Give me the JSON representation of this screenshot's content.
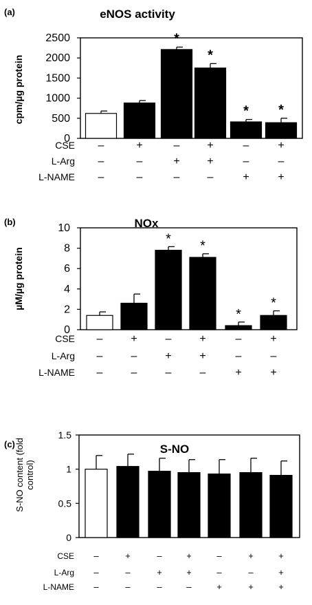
{
  "chart_data": [
    {
      "panel_label": "(a)",
      "type": "bar",
      "title": "eNOS activity",
      "ylabel": "cpm/µg protein",
      "ylim": [
        0,
        2500
      ],
      "yticks": [
        "0",
        "500",
        "1000",
        "1500",
        "2000",
        "2500"
      ],
      "values": [
        620,
        880,
        2210,
        1750,
        410,
        390
      ],
      "errors": [
        60,
        60,
        60,
        110,
        60,
        110
      ],
      "bar_fill": [
        "#ffffff",
        "#000000",
        "#000000",
        "#000000",
        "#000000",
        "#000000"
      ],
      "significance": [
        "",
        "",
        "*",
        "*",
        "*",
        "*"
      ],
      "conditions": [
        {
          "label": "CSE",
          "symbols": [
            "–",
            "+",
            "–",
            "+",
            "–",
            "+"
          ]
        },
        {
          "label": "L-Arg",
          "symbols": [
            "–",
            "–",
            "+",
            "+",
            "–",
            "–"
          ]
        },
        {
          "label": "L-NAME",
          "symbols": [
            "–",
            "–",
            "–",
            "–",
            "+",
            "+"
          ]
        }
      ]
    },
    {
      "panel_label": "(b)",
      "type": "bar",
      "title": "NOx",
      "ylabel": "µM/µg protein",
      "ylim": [
        0,
        10
      ],
      "yticks": [
        "0",
        "2",
        "4",
        "6",
        "8",
        "10"
      ],
      "values": [
        1.4,
        2.6,
        7.8,
        7.1,
        0.4,
        1.4
      ],
      "errors": [
        0.35,
        0.9,
        0.35,
        0.35,
        0.35,
        0.45
      ],
      "bar_fill": [
        "#ffffff",
        "#000000",
        "#000000",
        "#000000",
        "#000000",
        "#000000"
      ],
      "significance": [
        "",
        "",
        "*",
        "*",
        "*",
        "*"
      ],
      "conditions": [
        {
          "label": "CSE",
          "symbols": [
            "–",
            "+",
            "–",
            "+",
            "–",
            "+"
          ]
        },
        {
          "label": "L-Arg",
          "symbols": [
            "–",
            "–",
            "+",
            "+",
            "–",
            "–"
          ]
        },
        {
          "label": "L-NAME",
          "symbols": [
            "–",
            "–",
            "–",
            "–",
            "+",
            "+"
          ]
        }
      ]
    },
    {
      "panel_label": "(c)",
      "type": "bar",
      "title": "S-NO",
      "ylabel": "S-NO content (fold control)",
      "ylim": [
        0,
        1.5
      ],
      "yticks": [
        "0",
        "0.5",
        "1",
        "1.5"
      ],
      "values": [
        1.0,
        1.04,
        0.97,
        0.95,
        0.93,
        0.95,
        0.91
      ],
      "errors": [
        0.2,
        0.18,
        0.19,
        0.19,
        0.21,
        0.21,
        0.21
      ],
      "bar_fill": [
        "#ffffff",
        "#000000",
        "#000000",
        "#000000",
        "#000000",
        "#000000",
        "#000000"
      ],
      "significance": [
        "",
        "",
        "",
        "",
        "",
        "",
        ""
      ],
      "conditions": [
        {
          "label": "CSE",
          "symbols": [
            "–",
            "+",
            "–",
            "+",
            "–",
            "+",
            "+"
          ]
        },
        {
          "label": "L-Arg",
          "symbols": [
            "–",
            "–",
            "+",
            "+",
            "–",
            "–",
            "+"
          ]
        },
        {
          "label": "L-NAME",
          "symbols": [
            "–",
            "–",
            "–",
            "–",
            "+",
            "+",
            "+"
          ]
        }
      ]
    }
  ]
}
